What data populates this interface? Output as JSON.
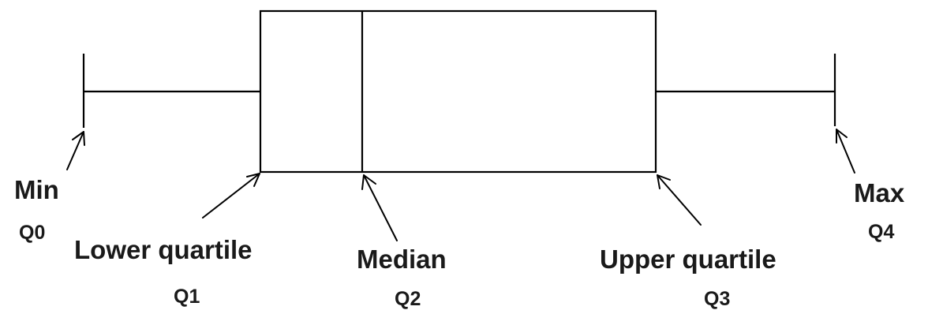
{
  "labels": {
    "min": {
      "name": "Min",
      "quartile": "Q0"
    },
    "lower": {
      "name": "Lower quartile",
      "quartile": "Q1"
    },
    "median": {
      "name": "Median",
      "quartile": "Q2"
    },
    "upper": {
      "name": "Upper quartile",
      "quartile": "Q3"
    },
    "max": {
      "name": "Max",
      "quartile": "Q4"
    }
  },
  "colors": {
    "stroke": "#000000",
    "text": "#1a1a1a",
    "background": "#ffffff"
  }
}
